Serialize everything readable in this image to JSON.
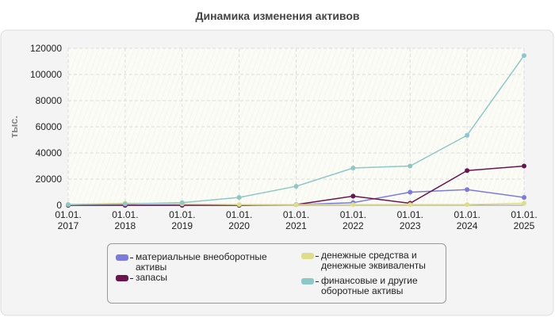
{
  "chart_data": {
    "type": "line",
    "title": "Динамика изменения активов",
    "y_label": "тыс.",
    "categories": [
      [
        "01.01.",
        "2017"
      ],
      [
        "01.01.",
        "2018"
      ],
      [
        "01.01.",
        "2019"
      ],
      [
        "01.01.",
        "2020"
      ],
      [
        "01.01.",
        "2021"
      ],
      [
        "01.01.",
        "2022"
      ],
      [
        "01.01.",
        "2023"
      ],
      [
        "01.01.",
        "2024"
      ],
      [
        "01.01.",
        "2025"
      ]
    ],
    "series": [
      {
        "name": "материальные внеоборотные активы",
        "color": "#7b7bdf",
        "values": [
          0,
          0,
          0,
          0,
          500,
          2000,
          10000,
          12000,
          6000
        ]
      },
      {
        "name": "запасы",
        "color": "#6b1450",
        "values": [
          0,
          0,
          0,
          0,
          500,
          7000,
          1500,
          26500,
          30000
        ]
      },
      {
        "name": "денежные средства и денежные эквиваленты",
        "color": "#dede8a",
        "values": [
          500,
          1500,
          1000,
          500,
          500,
          500,
          500,
          500,
          1500
        ]
      },
      {
        "name": "финансовые и другие оборотные активы",
        "color": "#8cc8c8",
        "values": [
          500,
          1000,
          2000,
          6000,
          14500,
          28500,
          30000,
          53500,
          114500
        ]
      }
    ],
    "ylim": [
      0,
      120000
    ],
    "yticks": [
      0,
      20000,
      40000,
      60000,
      80000,
      100000,
      120000
    ],
    "grid": true
  }
}
